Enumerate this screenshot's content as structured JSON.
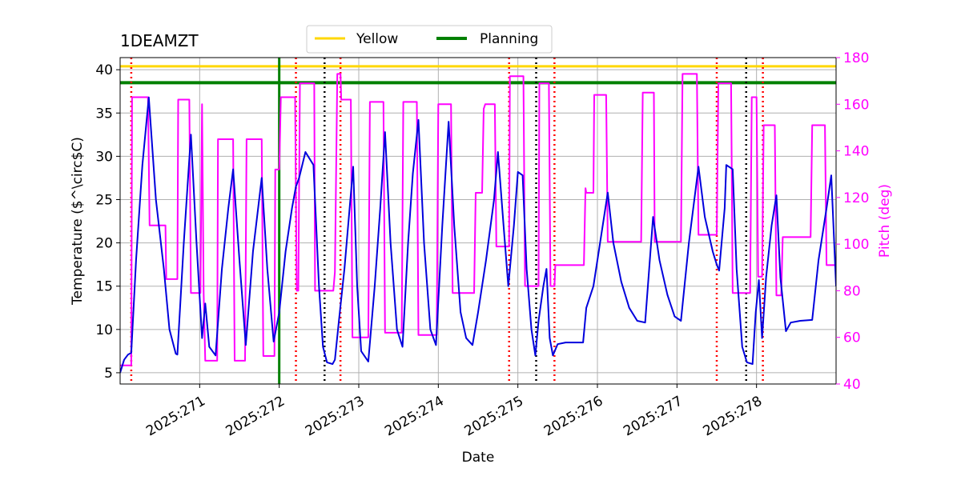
{
  "chart_data": {
    "type": "line",
    "title": "1DEAMZT",
    "xlabel": "Date",
    "ylabel": "Temperature ($^\\circ$C)",
    "ylabel_right": "Pitch (deg)",
    "xlim": [
      270.0,
      279.0
    ],
    "ylim": [
      3.7,
      41.4
    ],
    "ylim_right": [
      40,
      180
    ],
    "x_ticks": [
      {
        "value": 271,
        "label": "2025:271"
      },
      {
        "value": 272,
        "label": "2025:272"
      },
      {
        "value": 273,
        "label": "2025:273"
      },
      {
        "value": 274,
        "label": "2025:274"
      },
      {
        "value": 275,
        "label": "2025:275"
      },
      {
        "value": 276,
        "label": "2025:276"
      },
      {
        "value": 277,
        "label": "2025:277"
      },
      {
        "value": 278,
        "label": "2025:278"
      }
    ],
    "y_ticks": [
      5,
      10,
      15,
      20,
      25,
      30,
      35,
      40
    ],
    "y_ticks_right": [
      40,
      60,
      80,
      100,
      120,
      140,
      160,
      180
    ],
    "grid": true,
    "legend": {
      "placement": "top-center",
      "entries": [
        {
          "label": "Yellow",
          "color": "#ffd700"
        },
        {
          "label": "Planning",
          "color": "#008000"
        }
      ]
    },
    "hlines": [
      {
        "name": "Yellow",
        "y": 40.4,
        "color": "#ffd700"
      },
      {
        "name": "Planning",
        "y": 38.5,
        "color": "#008000"
      }
    ],
    "vline_planning": {
      "x": 272.0,
      "color": "#008000"
    },
    "vlines_red": [
      270.14,
      272.21,
      272.77,
      274.89,
      275.46,
      277.5,
      278.08
    ],
    "vlines_black": [
      272.57,
      275.23,
      277.87
    ],
    "series": [
      {
        "name": "1DEAMZT",
        "axis": "left",
        "color": "#0000dd",
        "points": [
          [
            270.0,
            5.0
          ],
          [
            270.05,
            6.5
          ],
          [
            270.1,
            7.1
          ],
          [
            270.14,
            7.3
          ],
          [
            270.2,
            18.0
          ],
          [
            270.28,
            29.0
          ],
          [
            270.36,
            36.8
          ],
          [
            270.45,
            25.0
          ],
          [
            270.55,
            17.0
          ],
          [
            270.62,
            10.0
          ],
          [
            270.7,
            7.2
          ],
          [
            270.72,
            7.1
          ],
          [
            270.8,
            20.0
          ],
          [
            270.89,
            32.5
          ],
          [
            270.96,
            20.0
          ],
          [
            271.03,
            9.0
          ],
          [
            271.07,
            13.0
          ],
          [
            271.12,
            8.0
          ],
          [
            271.2,
            7.0
          ],
          [
            271.28,
            17.0
          ],
          [
            271.36,
            24.0
          ],
          [
            271.42,
            28.5
          ],
          [
            271.5,
            18.0
          ],
          [
            271.58,
            8.2
          ],
          [
            271.67,
            19.0
          ],
          [
            271.78,
            27.5
          ],
          [
            271.85,
            17.0
          ],
          [
            271.93,
            8.6
          ],
          [
            272.0,
            12.0
          ],
          [
            272.08,
            19.0
          ],
          [
            272.16,
            24.0
          ],
          [
            272.21,
            26.5
          ],
          [
            272.25,
            27.5
          ],
          [
            272.33,
            30.5
          ],
          [
            272.43,
            29.0
          ],
          [
            272.5,
            15.0
          ],
          [
            272.55,
            8.0
          ],
          [
            272.6,
            6.2
          ],
          [
            272.67,
            6.0
          ],
          [
            272.7,
            6.5
          ],
          [
            272.75,
            11.0
          ],
          [
            272.82,
            17.0
          ],
          [
            272.93,
            28.8
          ],
          [
            272.98,
            15.0
          ],
          [
            273.03,
            7.5
          ],
          [
            273.12,
            6.3
          ],
          [
            273.2,
            15.0
          ],
          [
            273.27,
            24.0
          ],
          [
            273.33,
            32.8
          ],
          [
            273.4,
            20.0
          ],
          [
            273.48,
            10.0
          ],
          [
            273.55,
            8.0
          ],
          [
            273.62,
            20.0
          ],
          [
            273.68,
            28.0
          ],
          [
            273.75,
            34.2
          ],
          [
            273.82,
            20.0
          ],
          [
            273.9,
            10.0
          ],
          [
            273.97,
            8.2
          ],
          [
            274.05,
            22.0
          ],
          [
            274.13,
            34.0
          ],
          [
            274.2,
            22.0
          ],
          [
            274.28,
            12.0
          ],
          [
            274.35,
            9.0
          ],
          [
            274.43,
            8.2
          ],
          [
            274.5,
            12.0
          ],
          [
            274.6,
            18.0
          ],
          [
            274.7,
            25.0
          ],
          [
            274.75,
            30.5
          ],
          [
            274.82,
            22.0
          ],
          [
            274.88,
            15.0
          ],
          [
            274.95,
            22.0
          ],
          [
            275.0,
            28.2
          ],
          [
            275.06,
            27.8
          ],
          [
            275.11,
            17.0
          ],
          [
            275.17,
            10.0
          ],
          [
            275.22,
            7.0
          ],
          [
            275.26,
            11.0
          ],
          [
            275.32,
            15.0
          ],
          [
            275.36,
            17.0
          ],
          [
            275.4,
            9.0
          ],
          [
            275.44,
            7.0
          ],
          [
            275.5,
            8.3
          ],
          [
            275.6,
            8.5
          ],
          [
            275.7,
            8.5
          ],
          [
            275.82,
            8.5
          ],
          [
            275.86,
            12.5
          ],
          [
            275.95,
            15.0
          ],
          [
            276.0,
            18.0
          ],
          [
            276.13,
            25.8
          ],
          [
            276.2,
            20.0
          ],
          [
            276.3,
            15.5
          ],
          [
            276.4,
            12.5
          ],
          [
            276.5,
            11.0
          ],
          [
            276.6,
            10.8
          ],
          [
            276.7,
            23.0
          ],
          [
            276.78,
            18.0
          ],
          [
            276.88,
            14.0
          ],
          [
            276.97,
            11.5
          ],
          [
            277.05,
            11.0
          ],
          [
            277.15,
            20.0
          ],
          [
            277.27,
            28.8
          ],
          [
            277.35,
            23.0
          ],
          [
            277.45,
            19.0
          ],
          [
            277.5,
            17.5
          ],
          [
            277.53,
            16.8
          ],
          [
            277.6,
            24.0
          ],
          [
            277.62,
            29.0
          ],
          [
            277.7,
            28.5
          ],
          [
            277.75,
            17.0
          ],
          [
            277.82,
            8.0
          ],
          [
            277.88,
            6.2
          ],
          [
            277.95,
            6.0
          ],
          [
            277.99,
            12.0
          ],
          [
            278.03,
            15.7
          ],
          [
            278.07,
            9.0
          ],
          [
            278.12,
            16.0
          ],
          [
            278.19,
            22.0
          ],
          [
            278.25,
            25.5
          ],
          [
            278.3,
            16.0
          ],
          [
            278.37,
            9.8
          ],
          [
            278.43,
            10.8
          ],
          [
            278.55,
            11.0
          ],
          [
            278.7,
            11.1
          ],
          [
            278.78,
            18.0
          ],
          [
            278.88,
            24.0
          ],
          [
            278.94,
            27.8
          ],
          [
            279.0,
            15.0
          ]
        ]
      },
      {
        "name": "Pitch",
        "axis": "right",
        "color": "#ff00ff",
        "points": [
          [
            270.0,
            48
          ],
          [
            270.14,
            48
          ],
          [
            270.15,
            163
          ],
          [
            270.35,
            163
          ],
          [
            270.37,
            108
          ],
          [
            270.57,
            108
          ],
          [
            270.58,
            85
          ],
          [
            270.72,
            85
          ],
          [
            270.73,
            162
          ],
          [
            270.87,
            162
          ],
          [
            270.89,
            79
          ],
          [
            271.01,
            79
          ],
          [
            271.03,
            160
          ],
          [
            271.05,
            79
          ],
          [
            271.07,
            50
          ],
          [
            271.22,
            50
          ],
          [
            271.23,
            145
          ],
          [
            271.42,
            145
          ],
          [
            271.44,
            50
          ],
          [
            271.57,
            50
          ],
          [
            271.59,
            145
          ],
          [
            271.78,
            145
          ],
          [
            271.8,
            52
          ],
          [
            271.94,
            52
          ],
          [
            271.95,
            132
          ],
          [
            272.0,
            132
          ],
          [
            272.02,
            163
          ],
          [
            272.2,
            163
          ],
          [
            272.22,
            80
          ],
          [
            272.24,
            80
          ],
          [
            272.26,
            169
          ],
          [
            272.44,
            169
          ],
          [
            272.45,
            80
          ],
          [
            272.68,
            80
          ],
          [
            272.7,
            88
          ],
          [
            272.73,
            173
          ],
          [
            272.77,
            173
          ],
          [
            272.78,
            162
          ],
          [
            272.9,
            162
          ],
          [
            272.92,
            60
          ],
          [
            273.12,
            60
          ],
          [
            273.14,
            161
          ],
          [
            273.31,
            161
          ],
          [
            273.33,
            62
          ],
          [
            273.54,
            62
          ],
          [
            273.56,
            161
          ],
          [
            273.73,
            161
          ],
          [
            273.75,
            61
          ],
          [
            273.98,
            61
          ],
          [
            274.0,
            160
          ],
          [
            274.16,
            160
          ],
          [
            274.18,
            79
          ],
          [
            274.45,
            79
          ],
          [
            274.47,
            122
          ],
          [
            274.55,
            122
          ],
          [
            274.57,
            158
          ],
          [
            274.59,
            160
          ],
          [
            274.71,
            160
          ],
          [
            274.73,
            99
          ],
          [
            274.89,
            99
          ],
          [
            274.9,
            172
          ],
          [
            275.07,
            172
          ],
          [
            275.09,
            82
          ],
          [
            275.26,
            82
          ],
          [
            275.27,
            169
          ],
          [
            275.39,
            169
          ],
          [
            275.41,
            82
          ],
          [
            275.46,
            82
          ],
          [
            275.47,
            91
          ],
          [
            275.83,
            91
          ],
          [
            275.85,
            124
          ],
          [
            275.86,
            122
          ],
          [
            275.95,
            122
          ],
          [
            275.96,
            164
          ],
          [
            276.11,
            164
          ],
          [
            276.13,
            101
          ],
          [
            276.55,
            101
          ],
          [
            276.57,
            165
          ],
          [
            276.71,
            165
          ],
          [
            276.72,
            101
          ],
          [
            277.05,
            101
          ],
          [
            277.07,
            173
          ],
          [
            277.25,
            173
          ],
          [
            277.27,
            104
          ],
          [
            277.5,
            104
          ],
          [
            277.52,
            169
          ],
          [
            277.68,
            169
          ],
          [
            277.7,
            79
          ],
          [
            277.92,
            79
          ],
          [
            277.94,
            163
          ],
          [
            278.0,
            163
          ],
          [
            278.02,
            86
          ],
          [
            278.07,
            86
          ],
          [
            278.09,
            151
          ],
          [
            278.23,
            151
          ],
          [
            278.25,
            78
          ],
          [
            278.31,
            78
          ],
          [
            278.33,
            103
          ],
          [
            278.68,
            103
          ],
          [
            278.7,
            151
          ],
          [
            278.86,
            151
          ],
          [
            278.88,
            91
          ],
          [
            279.0,
            91
          ]
        ]
      }
    ]
  }
}
